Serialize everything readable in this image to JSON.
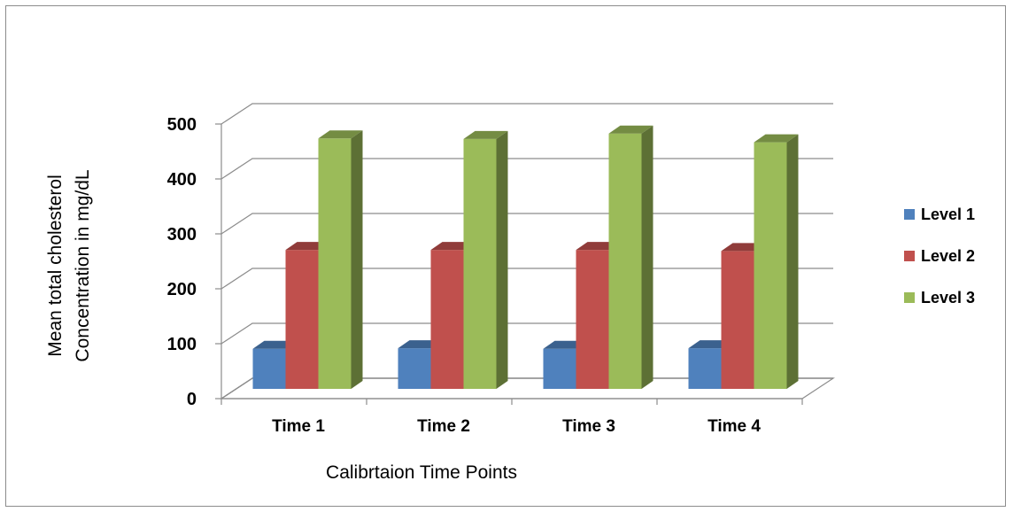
{
  "chart_data": {
    "type": "bar",
    "categories": [
      "Time 1",
      "Time 2",
      "Time 3",
      "Time 4"
    ],
    "series": [
      {
        "name": "Level 1",
        "values": [
          73,
          74,
          73,
          74
        ],
        "color": "#4f81bd"
      },
      {
        "name": "Level 2",
        "values": [
          253,
          253,
          253,
          251
        ],
        "color": "#c0504d"
      },
      {
        "name": "Level 3",
        "values": [
          456,
          455,
          465,
          449
        ],
        "color": "#9bbb59"
      }
    ],
    "yticks": [
      0,
      100,
      200,
      300,
      400,
      500
    ],
    "ylim": [
      0,
      500
    ],
    "xlabel": "Calibrtaion Time Points",
    "ylabel_lines": [
      "Mean  total cholesterol",
      "Concentration in mg/dL"
    ],
    "grid": true,
    "legend_position": "right",
    "style": "3d-clustered-column"
  }
}
